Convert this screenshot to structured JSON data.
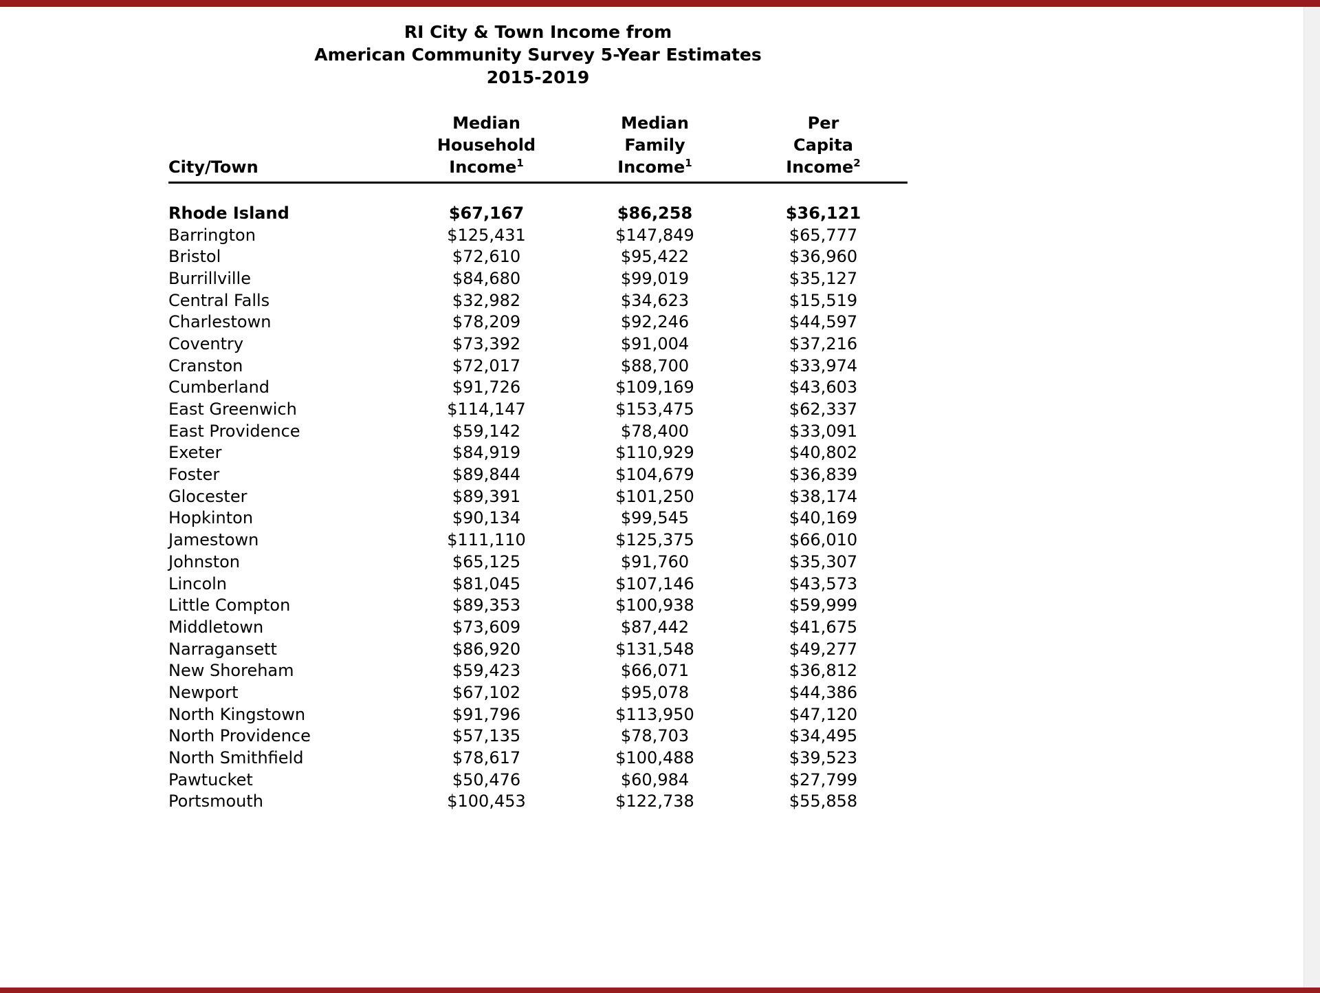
{
  "document": {
    "title_lines": [
      "RI City & Town Income from",
      "American Community Survey 5-Year Estimates",
      "2015-2019"
    ]
  },
  "table": {
    "header": {
      "city": "City/Town",
      "cols": [
        {
          "l1": "Median",
          "l2": "Household",
          "l3": "Income",
          "sup": "1"
        },
        {
          "l1": "Median",
          "l2": "Family",
          "l3": "Income",
          "sup": "1"
        },
        {
          "l1": "Per",
          "l2": "Capita",
          "l3": "Income",
          "sup": "2"
        }
      ]
    },
    "rows": [
      {
        "name": "Rhode Island",
        "bold": true,
        "household": "$67,167",
        "family": "$86,258",
        "per_capita": "$36,121"
      },
      {
        "name": "Barrington",
        "bold": false,
        "household": "$125,431",
        "family": "$147,849",
        "per_capita": "$65,777"
      },
      {
        "name": "Bristol",
        "bold": false,
        "household": "$72,610",
        "family": "$95,422",
        "per_capita": "$36,960"
      },
      {
        "name": "Burrillville",
        "bold": false,
        "household": "$84,680",
        "family": "$99,019",
        "per_capita": "$35,127"
      },
      {
        "name": "Central Falls",
        "bold": false,
        "household": "$32,982",
        "family": "$34,623",
        "per_capita": "$15,519"
      },
      {
        "name": "Charlestown",
        "bold": false,
        "household": "$78,209",
        "family": "$92,246",
        "per_capita": "$44,597"
      },
      {
        "name": "Coventry",
        "bold": false,
        "household": "$73,392",
        "family": "$91,004",
        "per_capita": "$37,216"
      },
      {
        "name": "Cranston",
        "bold": false,
        "household": "$72,017",
        "family": "$88,700",
        "per_capita": "$33,974"
      },
      {
        "name": "Cumberland",
        "bold": false,
        "household": "$91,726",
        "family": "$109,169",
        "per_capita": "$43,603"
      },
      {
        "name": "East Greenwich",
        "bold": false,
        "household": "$114,147",
        "family": "$153,475",
        "per_capita": "$62,337"
      },
      {
        "name": "East Providence",
        "bold": false,
        "household": "$59,142",
        "family": "$78,400",
        "per_capita": "$33,091"
      },
      {
        "name": "Exeter",
        "bold": false,
        "household": "$84,919",
        "family": "$110,929",
        "per_capita": "$40,802"
      },
      {
        "name": "Foster",
        "bold": false,
        "household": "$89,844",
        "family": "$104,679",
        "per_capita": "$36,839"
      },
      {
        "name": "Glocester",
        "bold": false,
        "household": "$89,391",
        "family": "$101,250",
        "per_capita": "$38,174"
      },
      {
        "name": "Hopkinton",
        "bold": false,
        "household": "$90,134",
        "family": "$99,545",
        "per_capita": "$40,169"
      },
      {
        "name": "Jamestown",
        "bold": false,
        "household": "$111,110",
        "family": "$125,375",
        "per_capita": "$66,010"
      },
      {
        "name": "Johnston",
        "bold": false,
        "household": "$65,125",
        "family": "$91,760",
        "per_capita": "$35,307"
      },
      {
        "name": "Lincoln",
        "bold": false,
        "household": "$81,045",
        "family": "$107,146",
        "per_capita": "$43,573"
      },
      {
        "name": "Little Compton",
        "bold": false,
        "household": "$89,353",
        "family": "$100,938",
        "per_capita": "$59,999"
      },
      {
        "name": "Middletown",
        "bold": false,
        "household": "$73,609",
        "family": "$87,442",
        "per_capita": "$41,675"
      },
      {
        "name": "Narragansett",
        "bold": false,
        "household": "$86,920",
        "family": "$131,548",
        "per_capita": "$49,277"
      },
      {
        "name": "New Shoreham",
        "bold": false,
        "household": "$59,423",
        "family": "$66,071",
        "per_capita": "$36,812"
      },
      {
        "name": "Newport",
        "bold": false,
        "household": "$67,102",
        "family": "$95,078",
        "per_capita": "$44,386"
      },
      {
        "name": "North Kingstown",
        "bold": false,
        "household": "$91,796",
        "family": "$113,950",
        "per_capita": "$47,120"
      },
      {
        "name": "North Providence",
        "bold": false,
        "household": "$57,135",
        "family": "$78,703",
        "per_capita": "$34,495"
      },
      {
        "name": "North Smithfield",
        "bold": false,
        "household": "$78,617",
        "family": "$100,488",
        "per_capita": "$39,523"
      },
      {
        "name": "Pawtucket",
        "bold": false,
        "household": "$50,476",
        "family": "$60,984",
        "per_capita": "$27,799"
      },
      {
        "name": "Portsmouth",
        "bold": false,
        "household": "$100,453",
        "family": "$122,738",
        "per_capita": "$55,858"
      }
    ]
  },
  "colors": {
    "accent_bar": "#981b1e",
    "scrollbar_track": "#f1f1f1"
  }
}
